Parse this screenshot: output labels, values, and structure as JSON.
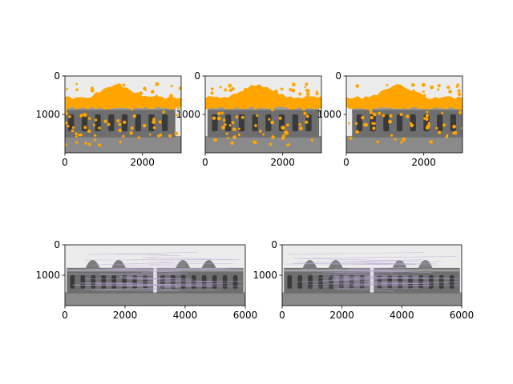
{
  "figure": {
    "background": "#ffffff"
  },
  "colors": {
    "keypoint": "#ffa500",
    "photo_sky": "#ececec",
    "photo_facade": "#6e6e6e",
    "photo_dark": "#3a3a3a",
    "photo_street": "#8a8a8a",
    "match_line": "#b8a8d8"
  },
  "chart_data": [
    {
      "type": "image",
      "content": "grayscale building photo with orange keypoints",
      "x_ticks": [
        "0",
        "2000"
      ],
      "y_ticks": [
        "0",
        "1000"
      ],
      "xlim": [
        0,
        3000
      ],
      "ylim": [
        2000,
        0
      ]
    },
    {
      "type": "image",
      "content": "grayscale building photo with orange keypoints",
      "x_ticks": [
        "0",
        "2000"
      ],
      "y_ticks": [
        "0",
        "1000"
      ],
      "xlim": [
        0,
        3000
      ],
      "ylim": [
        2000,
        0
      ]
    },
    {
      "type": "image",
      "content": "grayscale building photo with orange keypoints",
      "x_ticks": [
        "0",
        "2000"
      ],
      "y_ticks": [
        "0",
        "1000"
      ],
      "xlim": [
        0,
        3000
      ],
      "ylim": [
        2000,
        0
      ]
    },
    {
      "type": "image",
      "content": "two grayscale photos side by side with feature match lines",
      "x_ticks": [
        "0",
        "2000",
        "4000",
        "6000"
      ],
      "y_ticks": [
        "0",
        "1000"
      ],
      "xlim": [
        0,
        6000
      ],
      "ylim": [
        2000,
        0
      ]
    },
    {
      "type": "image",
      "content": "two grayscale photos side by side with feature match lines",
      "x_ticks": [
        "0",
        "2000",
        "4000",
        "6000"
      ],
      "y_ticks": [
        "0",
        "1000"
      ],
      "xlim": [
        0,
        6000
      ],
      "ylim": [
        2000,
        0
      ]
    }
  ]
}
